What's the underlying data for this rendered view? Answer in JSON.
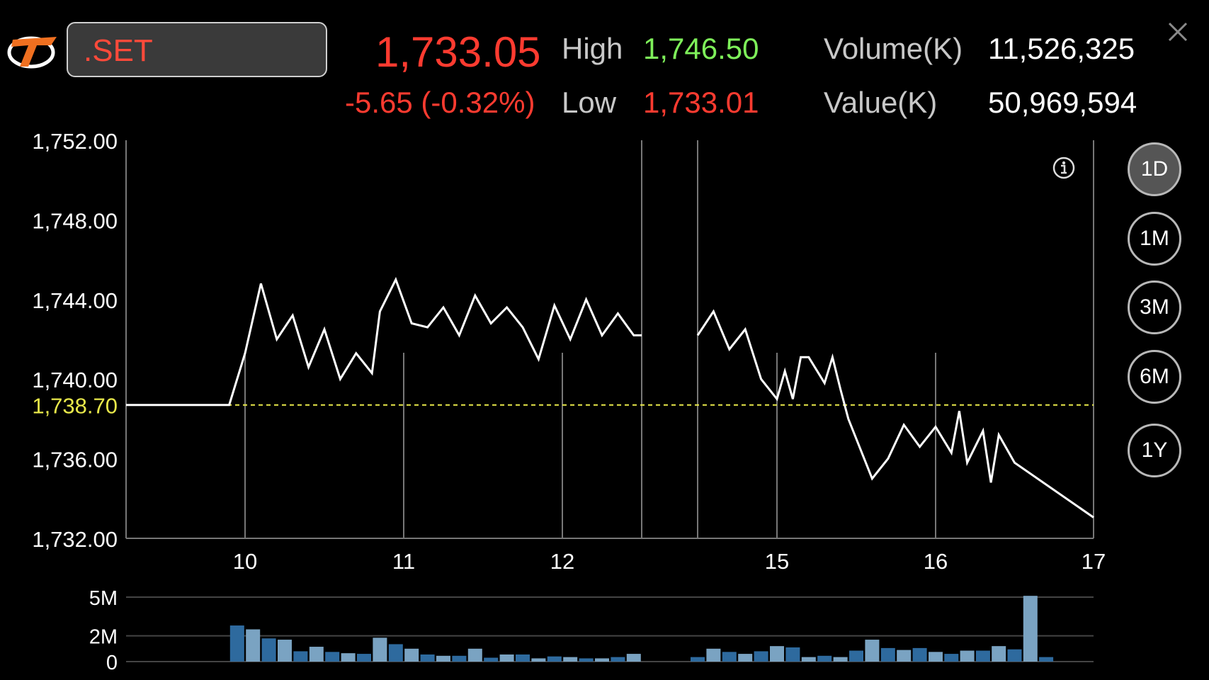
{
  "header": {
    "symbol": ".SET",
    "last_price": "1,733.05",
    "change": "-5.65 (-0.32%)",
    "high_label": "High",
    "high_value": "1,746.50",
    "low_label": "Low",
    "low_value": "1,733.01",
    "volume_label": "Volume(K)",
    "volume_value": "11,526,325",
    "value_label": "Value(K)",
    "value_value": "50,969,594"
  },
  "range_buttons": [
    {
      "label": "1D",
      "active": true
    },
    {
      "label": "1M",
      "active": false
    },
    {
      "label": "3M",
      "active": false
    },
    {
      "label": "6M",
      "active": false
    },
    {
      "label": "1Y",
      "active": false
    }
  ],
  "colors": {
    "negative": "#ff3b30",
    "positive": "#7ef05a",
    "price_line": "#ffffff",
    "reference_line": "#e8e84a",
    "volume_dark": "#2e6a9e",
    "volume_light": "#7aa3c2"
  },
  "chart_data": [
    {
      "type": "line",
      "x_ticks": [
        "10",
        "11",
        "12",
        "15",
        "16",
        "17"
      ],
      "y_ticks": [
        "1,752.00",
        "1,748.00",
        "1,744.00",
        "1,740.00",
        "1,736.00",
        "1,732.00"
      ],
      "ylim": [
        1732,
        1752
      ],
      "reference": {
        "label": "1,738.70",
        "value": 1738.7
      },
      "grid": "vertical lines at hour ticks",
      "series": [
        {
          "segment": "morning",
          "x": [
            9.25,
            9.9,
            10.0,
            10.1,
            10.2,
            10.3,
            10.4,
            10.5,
            10.6,
            10.7,
            10.8,
            10.85,
            10.95,
            11.05,
            11.15,
            11.25,
            11.35,
            11.45,
            11.55,
            11.65,
            11.75,
            11.85,
            11.95,
            12.05,
            12.15,
            12.25,
            12.35,
            12.45,
            12.5
          ],
          "values": [
            1738.7,
            1738.7,
            1741.3,
            1744.8,
            1742.0,
            1743.2,
            1740.6,
            1742.5,
            1740.0,
            1741.3,
            1740.3,
            1743.4,
            1745.0,
            1742.8,
            1742.6,
            1743.6,
            1742.2,
            1744.2,
            1742.8,
            1743.6,
            1742.6,
            1741.0,
            1743.7,
            1742.0,
            1744.0,
            1742.2,
            1743.3,
            1742.2,
            1742.2
          ]
        },
        {
          "segment": "afternoon",
          "x": [
            14.5,
            14.6,
            14.7,
            14.8,
            14.9,
            15.0,
            15.05,
            15.1,
            15.15,
            15.2,
            15.3,
            15.35,
            15.4,
            15.45,
            15.5,
            15.6,
            15.7,
            15.8,
            15.9,
            16.0,
            16.1,
            16.15,
            16.2,
            16.3,
            16.35,
            16.4,
            16.5,
            17.0
          ],
          "values": [
            1742.2,
            1743.4,
            1741.5,
            1742.5,
            1740.0,
            1739.0,
            1740.4,
            1739.0,
            1741.1,
            1741.1,
            1739.8,
            1741.1,
            1739.5,
            1738.0,
            1737.0,
            1735.0,
            1736.0,
            1737.7,
            1736.6,
            1737.6,
            1736.3,
            1738.4,
            1735.8,
            1737.4,
            1734.8,
            1737.2,
            1735.8,
            1733.05
          ]
        }
      ]
    },
    {
      "type": "bar",
      "y_ticks": [
        "5M",
        "2M",
        "0"
      ],
      "ylim": [
        0,
        5
      ],
      "x": [
        9.95,
        10.05,
        10.15,
        10.25,
        10.35,
        10.45,
        10.55,
        10.65,
        10.75,
        10.85,
        10.95,
        11.05,
        11.15,
        11.25,
        11.35,
        11.45,
        11.55,
        11.65,
        11.75,
        11.85,
        11.95,
        12.05,
        12.15,
        12.25,
        12.35,
        12.45,
        14.5,
        14.6,
        14.7,
        14.8,
        14.9,
        15.0,
        15.1,
        15.2,
        15.3,
        15.4,
        15.5,
        15.6,
        15.7,
        15.8,
        15.9,
        16.0,
        16.1,
        16.2,
        16.3,
        16.4,
        16.5,
        16.6,
        16.7
      ],
      "values": [
        2.8,
        2.5,
        1.8,
        1.7,
        0.8,
        1.15,
        0.75,
        0.65,
        0.6,
        1.85,
        1.35,
        1.0,
        0.55,
        0.45,
        0.45,
        1.0,
        0.3,
        0.55,
        0.55,
        0.25,
        0.4,
        0.35,
        0.25,
        0.25,
        0.35,
        0.6,
        0.35,
        1.0,
        0.75,
        0.6,
        0.8,
        1.2,
        1.1,
        0.35,
        0.45,
        0.35,
        0.85,
        1.7,
        1.05,
        0.9,
        1.05,
        0.75,
        0.6,
        0.85,
        0.85,
        1.2,
        0.95,
        5.1,
        0.35
      ]
    }
  ]
}
